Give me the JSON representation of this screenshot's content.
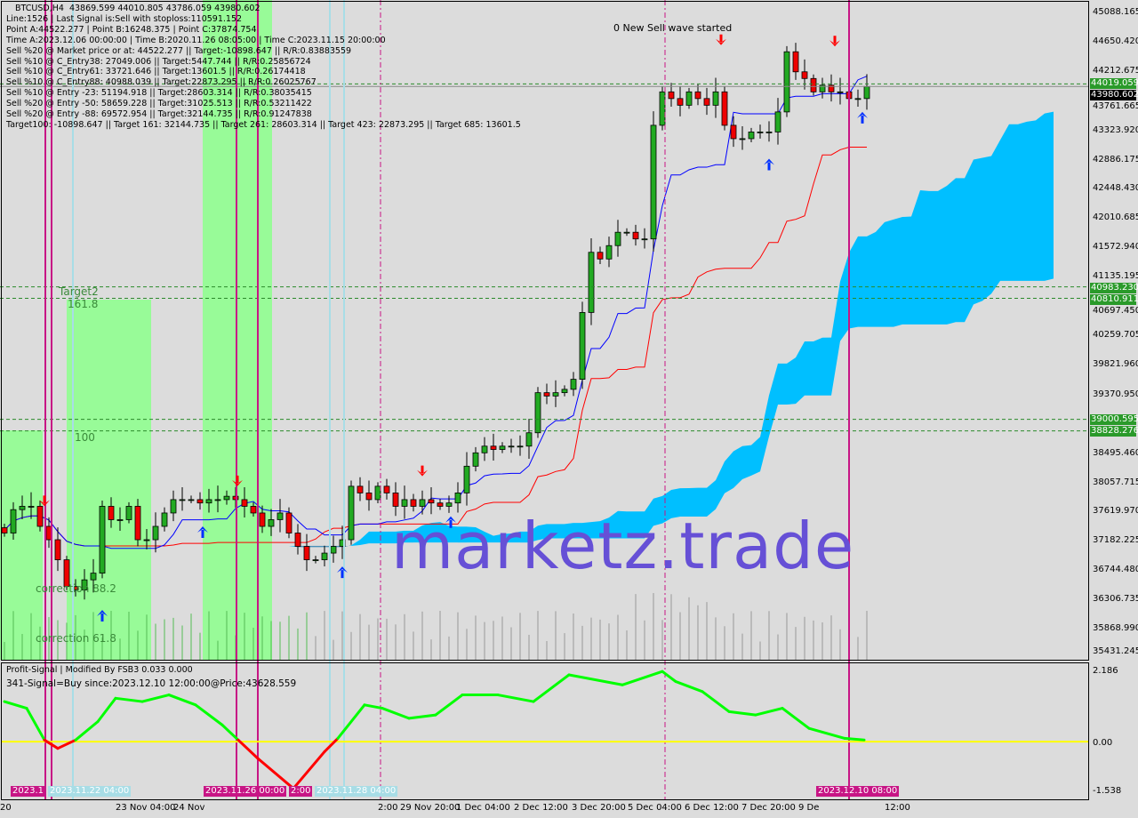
{
  "header_lines": [
    "BTCUSD,H4  43869.599 44010.805 43786.059 43980.602",
    "Line:1526 | Last Signal is:Sell with stoploss:110591.152",
    "Point A:44522.277 | Point B:16248.375 | Point C:37874.754",
    "Time A:2023.12.06 00:00:00 | Time B:2020.11.26 08:05:00 | Time C:2023.11.15 20:00:00",
    "Sell %20 @ Market price or at: 44522.277 || Target:-10898.647 || R/R:0.83883559",
    "Sell %10 @ C_Entry38: 27049.006 || Target:5447.744 || R/R:0.25856724",
    "Sell %10 @ C_Entry61: 33721.646 || Target:13601.5 || R/R:0.26174418",
    "Sell %10 @ C_Entry88: 40988.039 || Target:22873.295 || R/R:0.26025767",
    "Sell %10 @ Entry -23: 51194.918 || Target:28603.314 || R/R:0.38035415",
    "Sell %20 @ Entry -50: 58659.228 || Target:31025.513 || R/R:0.53211422",
    "Sell %20 @ Entry -88: 69572.954 || Target:32144.735 || R/R:0.91247838",
    "Target100: -10898.647 || Target 161: 32144.735 || Target 261: 28603.314 || Target 423: 22873.295 || Target 685: 13601.5"
  ],
  "wave_text": "0 New Sell wave started",
  "watermark": "marketz.trade",
  "fib_labels": {
    "target2": "Target2",
    "f161": "161.8",
    "f100": "100",
    "c882": "correction 88.2",
    "c618": "correction 61.8"
  },
  "oscillator": {
    "title": "Profit-Signal | Modified By FSB3 0.033 0.000",
    "signal": "341-Signal=Buy since:2023.12.10 12:00:00@Price:43628.559",
    "axis": [
      "2.186",
      "0.00",
      "-1.538"
    ],
    "range": [
      -1.538,
      2.186
    ],
    "zero_line_color": "#ffff00",
    "up_color": "#00ff00",
    "down_color": "#ff0000",
    "points": [
      [
        0,
        1.2
      ],
      [
        2.5,
        1.0
      ],
      [
        4.5,
        0.05
      ],
      [
        6,
        -0.2
      ],
      [
        8,
        0.05
      ],
      [
        10.5,
        0.6
      ],
      [
        12.5,
        1.3
      ],
      [
        15.5,
        1.2
      ],
      [
        18.5,
        1.4
      ],
      [
        21.5,
        1.1
      ],
      [
        24.5,
        0.5
      ],
      [
        26.3,
        0.05
      ],
      [
        28.5,
        -0.5
      ],
      [
        32.5,
        -1.4
      ],
      [
        36,
        -0.3
      ],
      [
        37.5,
        0.1
      ],
      [
        40.5,
        1.1
      ],
      [
        42.5,
        1.0
      ],
      [
        45.5,
        0.7
      ],
      [
        48.5,
        0.8
      ],
      [
        51.5,
        1.4
      ],
      [
        55.5,
        1.4
      ],
      [
        59.5,
        1.2
      ],
      [
        63.5,
        2.0
      ],
      [
        69.5,
        1.7
      ],
      [
        74,
        2.1
      ],
      [
        75.5,
        1.8
      ],
      [
        78.5,
        1.5
      ],
      [
        81.5,
        0.9
      ],
      [
        84.5,
        0.8
      ],
      [
        87.5,
        1.0
      ],
      [
        90.5,
        0.4
      ],
      [
        94.5,
        0.1
      ],
      [
        96.7,
        0.05
      ]
    ]
  },
  "chart_data": {
    "type": "candlestick",
    "symbol": "BTCUSD",
    "timeframe": "H4",
    "ylim": [
      35431.245,
      45088.165
    ],
    "y_ticks": [
      "45088.165",
      "44650.420",
      "44212.675",
      "43761.665",
      "43323.920",
      "42886.175",
      "42448.430",
      "42010.685",
      "41572.940",
      "41135.195",
      "40697.450",
      "40259.705",
      "39821.960",
      "39370.950",
      "38495.460",
      "38057.715",
      "37619.970",
      "37182.225",
      "36744.480",
      "36306.735",
      "35868.990",
      "35431.245"
    ],
    "price_tags": [
      {
        "label": "44019.059",
        "value": 44019.059,
        "color": "#2a9a2a"
      },
      {
        "label": "43980.602",
        "value": 43960,
        "color": "#000000"
      },
      {
        "label": "40983.230",
        "value": 40983.23,
        "color": "#2a9a2a"
      },
      {
        "label": "40810.911",
        "value": 40810.911,
        "color": "#2a9a2a"
      },
      {
        "label": "39000.595",
        "value": 39000.595,
        "color": "#2a9a2a"
      },
      {
        "label": "38828.276",
        "value": 38828.276,
        "color": "#2a9a2a"
      }
    ],
    "x_labels": [
      "20",
      "23 Nov 04:00",
      "24 Nov",
      "2:00",
      "29 Nov 20:00",
      "1 Dec 04:00",
      "2 Dec 12:00",
      "3 Dec 20:00",
      "5 Dec 04:00",
      "6 Dec 12:00",
      "7 Dec 20:00",
      "9 De",
      "12:00"
    ],
    "x_tags": [
      {
        "label": "2023.1",
        "color": "#c71585"
      },
      {
        "label": "2023.11.22 04:00",
        "color": "#a8dde6"
      },
      {
        "label": "2023.11.26 00:00",
        "color": "#c71585"
      },
      {
        "label": "2:00",
        "color": "#c71585"
      },
      {
        "label": "2023.11.28 04:00",
        "color": "#a8dde6"
      },
      {
        "label": "2023.12.10 08:00",
        "color": "#c71585"
      }
    ],
    "closes": [
      37300,
      37650,
      37700,
      37700,
      37400,
      37200,
      36900,
      36500,
      36450,
      36600,
      36700,
      37700,
      37500,
      37500,
      37700,
      37200,
      37200,
      37400,
      37600,
      37800,
      37800,
      37800,
      37750,
      37800,
      37800,
      37850,
      37800,
      37700,
      37600,
      37400,
      37500,
      37600,
      37300,
      37100,
      36900,
      36900,
      37000,
      37100,
      37200,
      38000,
      37900,
      37800,
      38000,
      37900,
      37700,
      37800,
      37700,
      37800,
      37750,
      37700,
      37750,
      37900,
      38300,
      38500,
      38600,
      38550,
      38600,
      38600,
      38600,
      38800,
      39400,
      39350,
      39400,
      39450,
      39600,
      40600,
      41500,
      41400,
      41600,
      41800,
      41800,
      41700,
      41700,
      43400,
      43900,
      43800,
      43700,
      43900,
      43800,
      43700,
      43900,
      43400,
      43200,
      43200,
      43300,
      43300,
      43300,
      43600,
      44500,
      44200,
      44100,
      43900,
      44000,
      43900,
      43900,
      43800,
      43800,
      43980
    ],
    "bull_color": "#22aa22",
    "bear_color": "#ee0000",
    "cloud_color": "#00bfff",
    "tenkan_color": "#0000ff",
    "kijun_color": "#ff0000",
    "levels": [
      44019.059,
      40983.23,
      40810.911,
      39000.595,
      38828.276
    ],
    "signals": [
      {
        "i": 4.5,
        "price": 37700,
        "type": "sell"
      },
      {
        "i": 26.2,
        "price": 38000,
        "type": "sell"
      },
      {
        "i": 47,
        "price": 38150,
        "type": "sell"
      },
      {
        "i": 80.6,
        "price": 44600,
        "type": "sell"
      },
      {
        "i": 93.4,
        "price": 44580,
        "type": "sell"
      },
      {
        "i": 22.3,
        "price": 37400,
        "type": "buy"
      },
      {
        "i": 11,
        "price": 36150,
        "type": "buy"
      },
      {
        "i": 50.2,
        "price": 37550,
        "type": "buy"
      },
      {
        "i": 38,
        "price": 36800,
        "type": "buy"
      },
      {
        "i": 86,
        "price": 42900,
        "type": "buy"
      },
      {
        "i": 96.5,
        "price": 43600,
        "type": "buy"
      }
    ]
  }
}
